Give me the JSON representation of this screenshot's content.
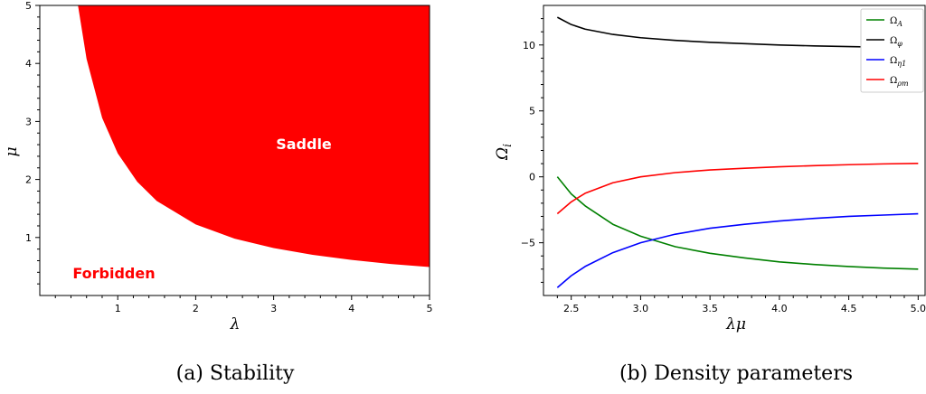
{
  "chart_data": [
    {
      "type": "area",
      "caption": "(a) Stability",
      "xlabel": "λ",
      "ylabel": "μ",
      "xlim": [
        0,
        5
      ],
      "ylim": [
        0,
        5
      ],
      "xticks": [
        "1",
        "2",
        "3",
        "4",
        "5"
      ],
      "yticks": [
        "1",
        "2",
        "3",
        "4",
        "5"
      ],
      "boundary": {
        "relation": "λμ = 2.45",
        "x": [
          0.49,
          0.6,
          0.8,
          1.0,
          1.25,
          1.5,
          2.0,
          2.5,
          3.0,
          3.5,
          4.0,
          4.5,
          5.0
        ],
        "y": [
          5.0,
          4.08,
          3.06,
          2.45,
          1.96,
          1.63,
          1.225,
          0.98,
          0.817,
          0.7,
          0.613,
          0.544,
          0.49
        ]
      },
      "regions": [
        {
          "label": "Saddle",
          "color": "#ff0000"
        },
        {
          "label": "Forbidden",
          "color": "#ffffff"
        }
      ],
      "grid": false,
      "legend": "none"
    },
    {
      "type": "line",
      "caption": "(b) Density parameters",
      "xlabel": "λμ",
      "ylabel": "Ω_i",
      "xlim": [
        2.3,
        5.05
      ],
      "ylim": [
        -9,
        13
      ],
      "xticks": [
        "2.5",
        "3.0",
        "3.5",
        "4.0",
        "4.5",
        "5.0"
      ],
      "yticks": [
        "−5",
        "0",
        "5",
        "10"
      ],
      "grid": false,
      "legend": "top-right",
      "x": [
        2.4,
        2.5,
        2.6,
        2.8,
        3.0,
        3.25,
        3.5,
        3.75,
        4.0,
        4.25,
        4.5,
        4.75,
        5.0
      ],
      "series": [
        {
          "name": "Ω_A",
          "color": "#008000",
          "values": [
            0.0,
            -1.3,
            -2.2,
            -3.6,
            -4.5,
            -5.3,
            -5.8,
            -6.15,
            -6.45,
            -6.65,
            -6.8,
            -6.92,
            -7.0
          ]
        },
        {
          "name": "Ω_φ",
          "color": "#000000",
          "values": [
            12.1,
            11.55,
            11.2,
            10.8,
            10.55,
            10.35,
            10.2,
            10.1,
            10.0,
            9.93,
            9.88,
            9.83,
            9.8
          ]
        },
        {
          "name": "Ω_η1",
          "color": "#0000ff",
          "values": [
            -8.4,
            -7.5,
            -6.8,
            -5.75,
            -5.0,
            -4.35,
            -3.9,
            -3.6,
            -3.35,
            -3.15,
            -3.0,
            -2.9,
            -2.8
          ]
        },
        {
          "name": "Ω_ρm",
          "color": "#ff0000",
          "values": [
            -2.8,
            -1.9,
            -1.25,
            -0.45,
            0.0,
            0.32,
            0.52,
            0.65,
            0.76,
            0.85,
            0.92,
            0.98,
            1.02
          ]
        }
      ]
    }
  ]
}
